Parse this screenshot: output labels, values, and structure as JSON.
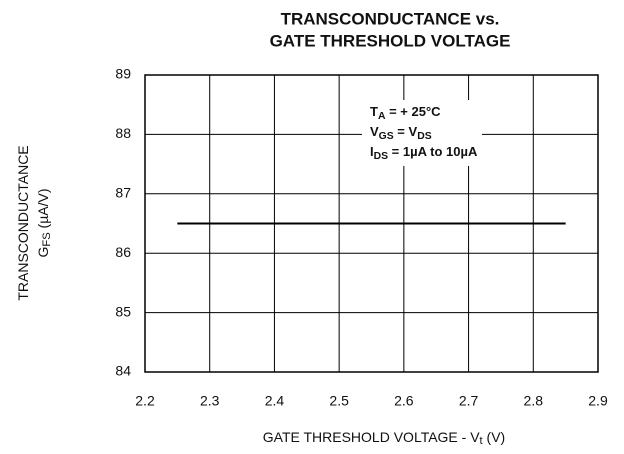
{
  "chart_data": {
    "type": "line",
    "title": [
      "TRANSCONDUCTANCE vs.",
      "GATE THRESHOLD VOLTAGE"
    ],
    "y_label": [
      [
        {
          "t": "TRANSCONDUCTANCE"
        }
      ],
      [
        {
          "t": "G"
        },
        {
          "sub": "FS"
        },
        {
          "t": " (µA/V)"
        }
      ]
    ],
    "x_label": [
      {
        "t": "GATE THRESHOLD VOLTAGE - V"
      },
      {
        "sub": "t"
      },
      {
        "t": " (V)"
      }
    ],
    "annotation": [
      [
        {
          "t": "T"
        },
        {
          "sub": "A"
        },
        {
          "t": " = + 25°C"
        }
      ],
      [
        {
          "t": "V"
        },
        {
          "sub": "GS"
        },
        {
          "t": " = V"
        },
        {
          "sub": "DS"
        }
      ],
      [
        {
          "t": "I"
        },
        {
          "sub": "DS"
        },
        {
          "t": " = 1µA to 10µA"
        }
      ]
    ],
    "x": [
      2.25,
      2.85
    ],
    "series": [
      {
        "color": "#000000",
        "values": [
          86.5,
          86.5
        ]
      }
    ],
    "xlim": [
      2.2,
      2.9
    ],
    "xticks": [
      2.2,
      2.3,
      2.4,
      2.5,
      2.6,
      2.7,
      2.8,
      2.9
    ],
    "ylim": [
      84,
      89
    ],
    "yticks": [
      84,
      85,
      86,
      87,
      88,
      89
    ],
    "grid": true
  }
}
